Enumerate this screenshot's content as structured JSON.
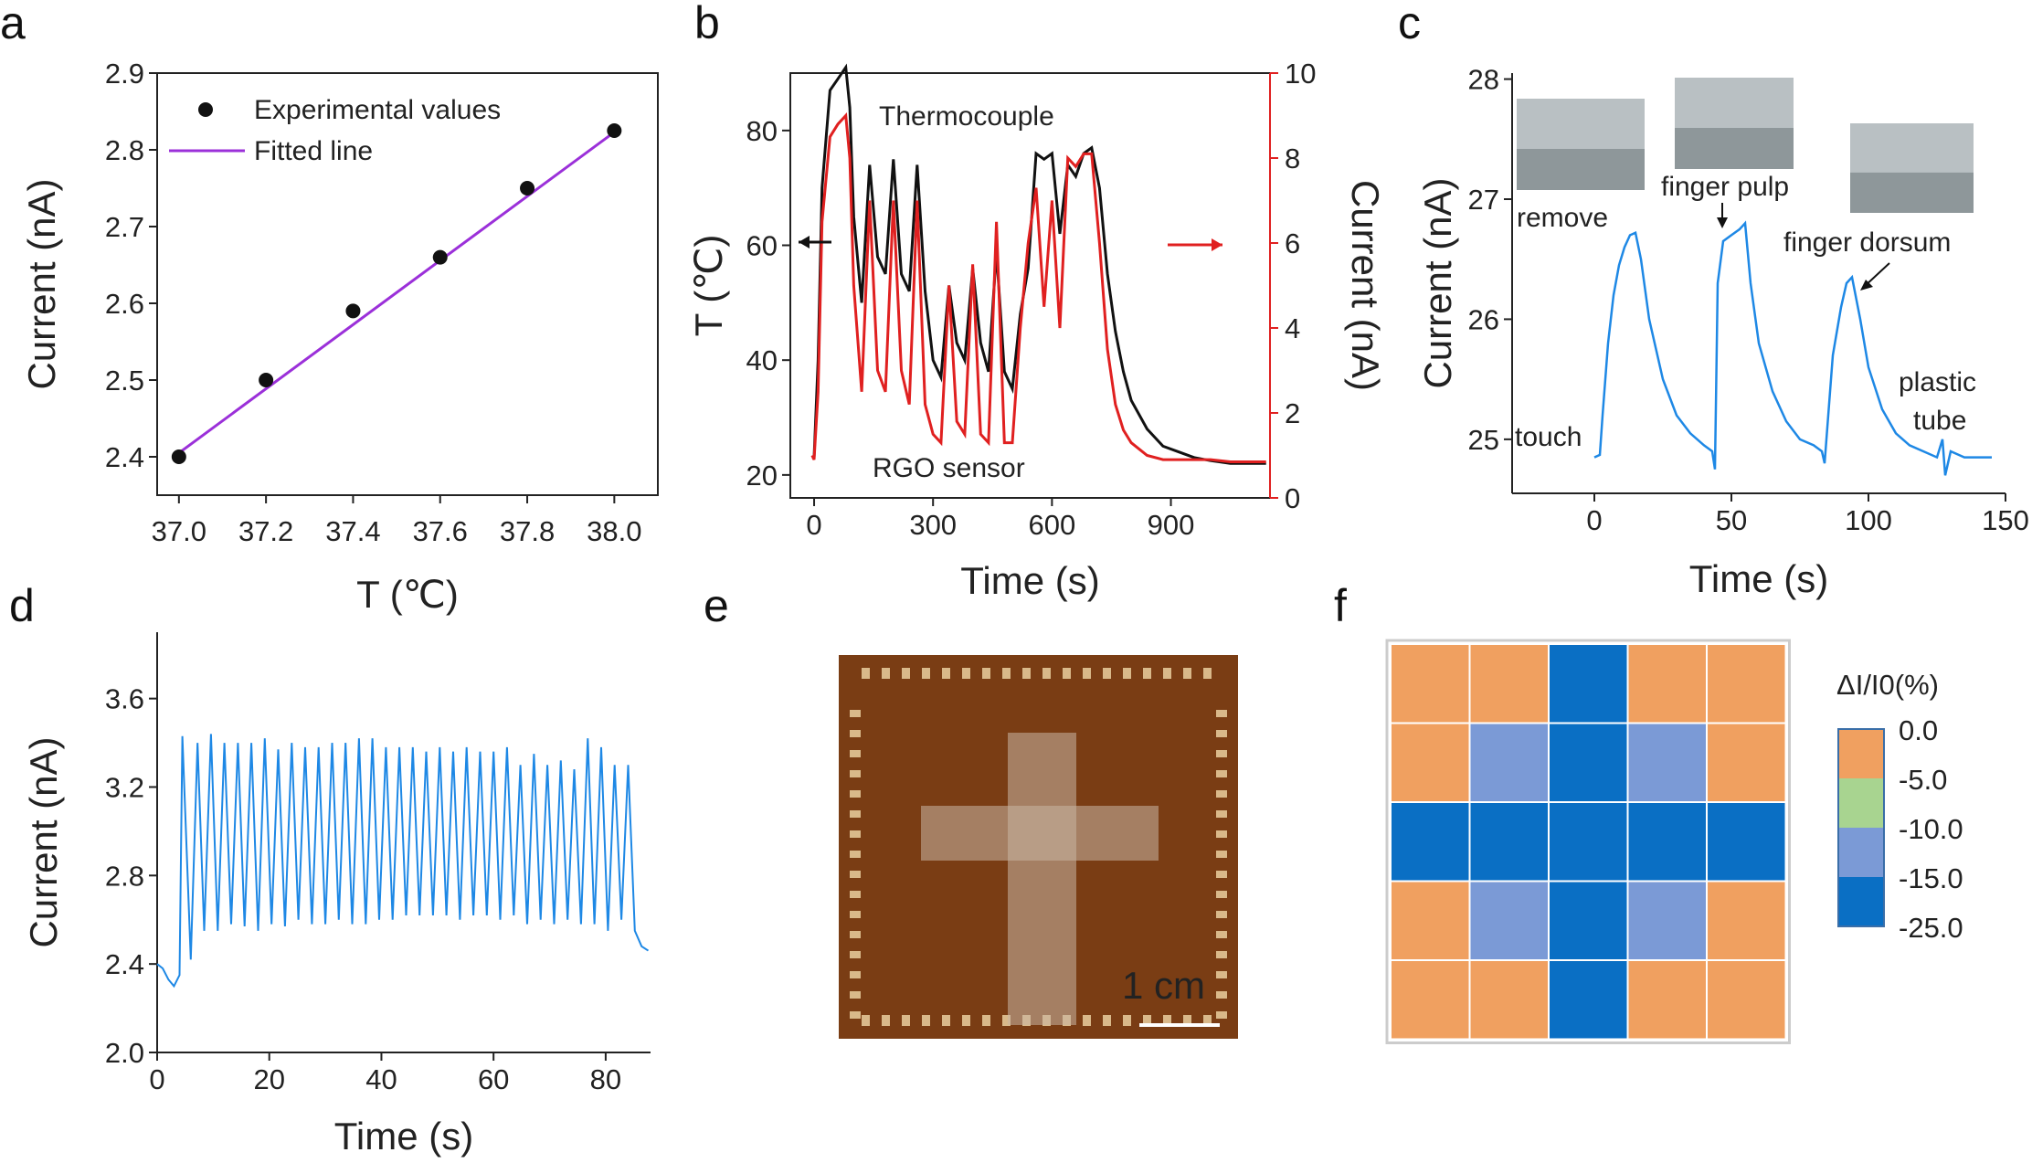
{
  "panels": {
    "a": {
      "letter": "a"
    },
    "b": {
      "letter": "b"
    },
    "c": {
      "letter": "c"
    },
    "d": {
      "letter": "d"
    },
    "e": {
      "letter": "e",
      "scale_bar": "1 cm"
    },
    "f": {
      "letter": "f"
    }
  },
  "colors": {
    "axis": "#222222",
    "purple_fit": "#9b30d9",
    "black_series": "#111111",
    "red_series": "#e02020",
    "blue_series": "#1e88e5",
    "heat_0": "#f0a060",
    "heat_5": "#a8d490",
    "heat_10": "#7b9ad6",
    "heat_25": "#0a6fc4"
  },
  "chart_data": [
    {
      "id": "a",
      "type": "scatter",
      "xlabel": "T (℃)",
      "ylabel": "Current (nA)",
      "xlim": [
        36.95,
        38.1
      ],
      "ylim": [
        2.35,
        2.9
      ],
      "xticks": [
        "37.0",
        "37.2",
        "37.4",
        "37.6",
        "37.8",
        "38.0"
      ],
      "xtick_values": [
        37.0,
        37.2,
        37.4,
        37.6,
        37.8,
        38.0
      ],
      "yticks": [
        "2.4",
        "2.5",
        "2.6",
        "2.7",
        "2.8",
        "2.9"
      ],
      "ytick_values": [
        2.4,
        2.5,
        2.6,
        2.7,
        2.8,
        2.9
      ],
      "series": [
        {
          "name": "Experimental values",
          "kind": "points",
          "x": [
            37.0,
            37.2,
            37.4,
            37.6,
            37.8,
            38.0
          ],
          "y": [
            2.4,
            2.5,
            2.59,
            2.66,
            2.75,
            2.825
          ]
        },
        {
          "name": "Fitted line",
          "kind": "line",
          "x": [
            37.0,
            38.0
          ],
          "y": [
            2.405,
            2.823
          ]
        }
      ],
      "legend": "top-left"
    },
    {
      "id": "b",
      "type": "line",
      "xlabel": "Time (s)",
      "ylabel_left": "T (℃)",
      "ylabel_right": "Current (nA)",
      "xlim": [
        -60,
        1150
      ],
      "ylim_left": [
        16,
        90
      ],
      "ylim_right": [
        0,
        10
      ],
      "xticks": [
        "0",
        "300",
        "600",
        "900"
      ],
      "xtick_values": [
        0,
        300,
        600,
        900
      ],
      "yticks_left": [
        "20",
        "40",
        "60",
        "80"
      ],
      "ytick_left_values": [
        20,
        40,
        60,
        80
      ],
      "yticks_right": [
        "0",
        "2",
        "4",
        "6",
        "8",
        "10"
      ],
      "ytick_right_values": [
        0,
        2,
        4,
        6,
        8,
        10
      ],
      "annotations": [
        "Thermocouple",
        "RGO sensor"
      ],
      "series": [
        {
          "name": "Thermocouple",
          "axis": "left",
          "x": [
            -5,
            0,
            10,
            20,
            40,
            60,
            80,
            90,
            100,
            120,
            140,
            160,
            180,
            200,
            220,
            240,
            260,
            280,
            300,
            320,
            340,
            360,
            380,
            400,
            420,
            440,
            460,
            480,
            500,
            520,
            540,
            560,
            580,
            600,
            620,
            640,
            660,
            680,
            700,
            720,
            740,
            760,
            780,
            800,
            840,
            880,
            920,
            960,
            1000,
            1050,
            1100,
            1140
          ],
          "y": [
            23,
            23,
            40,
            70,
            87,
            89,
            91,
            84,
            65,
            50,
            74,
            58,
            55,
            75,
            55,
            52,
            74,
            52,
            40,
            37,
            53,
            43,
            40,
            56,
            43,
            38,
            59,
            38,
            35,
            48,
            56,
            76,
            75,
            76,
            62,
            74,
            72,
            76,
            77,
            70,
            55,
            45,
            38,
            33,
            28,
            25,
            24,
            23,
            22.5,
            22,
            22,
            22
          ]
        },
        {
          "name": "RGO sensor",
          "axis": "right",
          "x": [
            -5,
            0,
            10,
            20,
            40,
            60,
            80,
            90,
            100,
            120,
            140,
            160,
            180,
            200,
            220,
            240,
            260,
            280,
            300,
            320,
            340,
            360,
            380,
            400,
            420,
            440,
            460,
            480,
            500,
            520,
            540,
            560,
            580,
            600,
            620,
            640,
            660,
            680,
            700,
            720,
            740,
            760,
            780,
            800,
            840,
            880,
            920,
            960,
            1000,
            1050,
            1100,
            1140
          ],
          "y": [
            1.0,
            0.9,
            2.5,
            6.5,
            8.5,
            8.8,
            9.0,
            8.0,
            5.0,
            2.5,
            7.0,
            3.0,
            2.5,
            7.0,
            3.0,
            2.2,
            7.0,
            2.2,
            1.5,
            1.3,
            5.0,
            1.8,
            1.5,
            5.5,
            1.5,
            1.3,
            6.5,
            1.3,
            1.3,
            4.0,
            6.0,
            7.3,
            4.5,
            7.0,
            4.0,
            8.0,
            7.8,
            8.1,
            8.1,
            6.0,
            3.5,
            2.2,
            1.6,
            1.3,
            1.0,
            0.9,
            0.9,
            0.9,
            0.9,
            0.85,
            0.85,
            0.85
          ]
        }
      ]
    },
    {
      "id": "c",
      "type": "line",
      "xlabel": "Time (s)",
      "ylabel": "Current (nA)",
      "xlim": [
        -30,
        150
      ],
      "ylim": [
        24.55,
        28.05
      ],
      "xticks": [
        "0",
        "50",
        "100",
        "150"
      ],
      "xtick_values": [
        0,
        50,
        100,
        150
      ],
      "yticks": [
        "25",
        "26",
        "27",
        "28"
      ],
      "ytick_values": [
        25,
        26,
        27,
        28
      ],
      "annotations": [
        "touch",
        "remove",
        "finger pulp",
        "finger dorsum",
        "plastic",
        "tube"
      ],
      "series": [
        {
          "name": "",
          "x": [
            0,
            2,
            3,
            5,
            7,
            9,
            11,
            13,
            15,
            17,
            20,
            25,
            30,
            35,
            40,
            43,
            44,
            45,
            47,
            50,
            53,
            55,
            57,
            60,
            65,
            70,
            75,
            80,
            83,
            84,
            85,
            87,
            90,
            92,
            94,
            97,
            100,
            105,
            110,
            115,
            120,
            125,
            127,
            128,
            130,
            135,
            140,
            145
          ],
          "y": [
            24.85,
            24.87,
            25.2,
            25.8,
            26.2,
            26.45,
            26.6,
            26.7,
            26.72,
            26.5,
            26.0,
            25.5,
            25.2,
            25.05,
            24.95,
            24.9,
            24.75,
            26.3,
            26.65,
            26.7,
            26.75,
            26.8,
            26.3,
            25.8,
            25.4,
            25.15,
            25.0,
            24.95,
            24.9,
            24.8,
            25.1,
            25.7,
            26.1,
            26.3,
            26.35,
            26.0,
            25.6,
            25.25,
            25.05,
            24.95,
            24.9,
            24.85,
            25.0,
            24.7,
            24.9,
            24.85,
            24.85,
            24.85
          ]
        }
      ]
    },
    {
      "id": "d",
      "type": "line",
      "xlabel": "Time (s)",
      "ylabel": "Current (nA)",
      "xlim": [
        0,
        88
      ],
      "ylim": [
        2.0,
        3.9
      ],
      "xticks": [
        "0",
        "20",
        "40",
        "60",
        "80"
      ],
      "xtick_values": [
        0,
        20,
        40,
        60,
        80
      ],
      "yticks": [
        "2.0",
        "2.4",
        "2.8",
        "3.2",
        "3.6"
      ],
      "ytick_values": [
        2.0,
        2.4,
        2.8,
        3.2,
        3.6
      ],
      "series": [
        {
          "name": "",
          "x": [
            0,
            1.0,
            2.0,
            3.0,
            4.0,
            4.5,
            6.0,
            7.2,
            8.4,
            9.6,
            10.8,
            12.0,
            13.2,
            14.4,
            15.6,
            16.8,
            18.0,
            19.2,
            20.4,
            21.6,
            22.8,
            24.0,
            25.2,
            26.4,
            27.6,
            28.8,
            30.0,
            31.2,
            32.4,
            33.6,
            34.8,
            36.0,
            37.2,
            38.4,
            39.6,
            40.8,
            42.0,
            43.2,
            44.4,
            45.6,
            46.8,
            48.0,
            49.2,
            50.4,
            51.6,
            52.8,
            54.0,
            55.2,
            56.4,
            57.6,
            58.8,
            60.0,
            61.2,
            62.4,
            63.6,
            64.8,
            66.0,
            67.2,
            68.4,
            69.6,
            70.8,
            72.0,
            73.2,
            74.4,
            75.6,
            76.8,
            78.0,
            79.2,
            80.4,
            81.6,
            82.8,
            84.0,
            85.2,
            86.4,
            87.6
          ],
          "y": [
            2.4,
            2.38,
            2.33,
            2.3,
            2.35,
            3.43,
            2.42,
            3.4,
            2.55,
            3.44,
            2.55,
            3.4,
            2.58,
            3.4,
            2.57,
            3.4,
            2.55,
            3.42,
            2.58,
            3.37,
            2.57,
            3.4,
            2.6,
            3.38,
            2.58,
            3.38,
            2.58,
            3.4,
            2.6,
            3.4,
            2.58,
            3.42,
            2.58,
            3.42,
            2.6,
            3.38,
            2.6,
            3.38,
            2.62,
            3.38,
            2.62,
            3.36,
            2.62,
            3.38,
            2.62,
            3.36,
            2.6,
            3.38,
            2.62,
            3.36,
            2.62,
            3.36,
            2.6,
            3.38,
            2.62,
            3.3,
            2.58,
            3.35,
            2.6,
            3.3,
            2.58,
            3.32,
            2.6,
            3.28,
            2.58,
            3.42,
            2.58,
            3.38,
            2.55,
            3.3,
            2.6,
            3.3,
            2.55,
            2.48,
            2.46
          ]
        }
      ]
    },
    {
      "id": "f",
      "type": "heatmap",
      "colorbar_title": "ΔI/I0(%)",
      "colorbar_labels": [
        "0.0",
        "-5.0",
        "-10.0",
        "-15.0",
        "-25.0"
      ],
      "level_values": [
        0,
        -5,
        -10,
        -15,
        -25
      ],
      "grid": [
        [
          0,
          0,
          -25,
          0,
          0
        ],
        [
          0,
          -15,
          -25,
          -10,
          0
        ],
        [
          -25,
          -25,
          -25,
          -25,
          -25
        ],
        [
          0,
          -10,
          -25,
          -10,
          0
        ],
        [
          0,
          0,
          -25,
          0,
          0
        ]
      ]
    }
  ]
}
